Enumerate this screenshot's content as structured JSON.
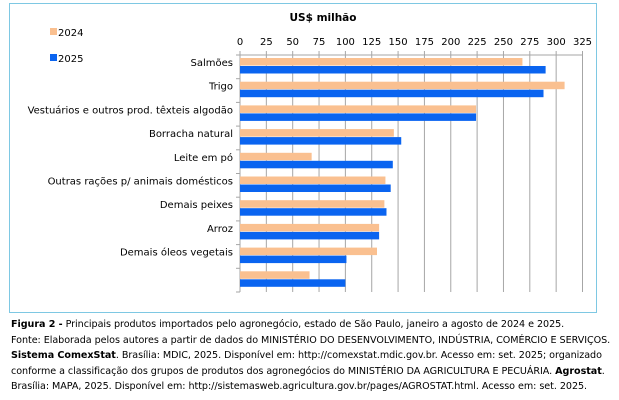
{
  "chart_data": {
    "type": "bar",
    "orientation": "horizontal",
    "title": "",
    "xlabel": "US$ milhão",
    "ylabel": "",
    "xlim": [
      0,
      325
    ],
    "xticks": [
      0,
      25,
      50,
      75,
      100,
      125,
      150,
      175,
      200,
      225,
      250,
      275,
      300,
      325
    ],
    "xtick_labels": [
      "0",
      "25",
      "50",
      "75",
      "100",
      "125",
      "150",
      "175",
      "200",
      "225",
      "250",
      "275",
      "300",
      "325"
    ],
    "xaxis_position": "top",
    "grid": true,
    "legend_position": "top-left",
    "categories": [
      "Salmões",
      "Trigo",
      "Vestuários e outros prod. têxteis algodão",
      "Borracha natural",
      "Leite em pó",
      "Outras rações p/ animais domésticos",
      "Demais peixes",
      "Arroz",
      "Demais óleos vegetais",
      ""
    ],
    "series": [
      {
        "name": "2024",
        "color": "#fac090",
        "values": [
          268,
          308,
          224,
          146,
          68,
          138,
          137,
          132,
          130,
          66
        ]
      },
      {
        "name": "2025",
        "color": "#0a64f0",
        "values": [
          290,
          288,
          224,
          153,
          145,
          143,
          139,
          132,
          101,
          100
        ]
      }
    ]
  },
  "colors": {
    "frame_border": "#7ec8e3",
    "gridline": "#a6a6a6"
  },
  "caption": {
    "figure_label": "Figura 2 -",
    "figure_text": " Principais produtos importados pelo agronegócio, estado de São Paulo, janeiro a agosto de 2024 e 2025.",
    "source_line1": "Fonte: Elaborada pelos autores a partir de dados do MINISTÉRIO DO DESENVOLVIMENTO, INDÚSTRIA, COMÉRCIO E SERVIÇOS.",
    "source_bold1": "Sistema ComexStat",
    "source_line2_rest": ". Brasília: MDIC, 2025. Disponível em: http://comexstat.mdic.gov.br. Acesso em: set. 2025; organizado",
    "source_line3_a": "conforme a classificação dos grupos de produtos dos agronegócios do MINISTÉRIO DA AGRICULTURA E PECUÁRIA. ",
    "source_bold2": "Agrostat",
    "source_line3_b": ".",
    "source_line4": "Brasília: MAPA, 2025. Disponível em: http://sistemasweb.agricultura.gov.br/pages/AGROSTAT.html. Acesso em: set. 2025."
  }
}
